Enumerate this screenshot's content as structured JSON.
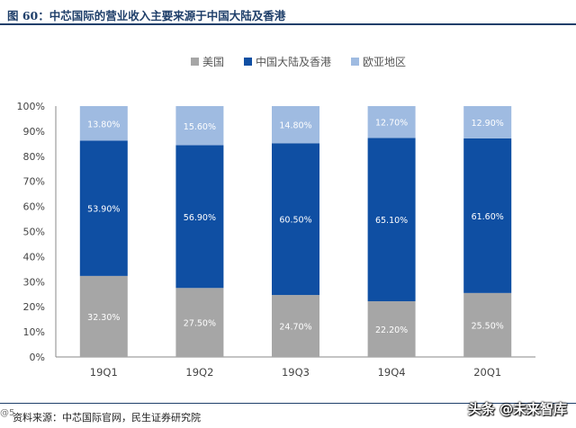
{
  "title": "图 60：中芯国际的营业收入主要来源于中国大陆及香港",
  "source": "资料来源：中芯国际官网，民生证券研究院",
  "watermark": "头条 @未来智库",
  "corner_text": "@5.",
  "colors": {
    "us": "#a6a6a6",
    "china": "#0f4fa3",
    "eu": "#9fbbe1",
    "title": "#1f3f6a"
  },
  "chart_data": {
    "type": "bar",
    "stacked": true,
    "title": "",
    "xlabel": "",
    "ylabel": "",
    "categories": [
      "19Q1",
      "19Q2",
      "19Q3",
      "19Q4",
      "20Q1"
    ],
    "series": [
      {
        "name": "美国",
        "values": [
          32.3,
          27.5,
          24.7,
          22.2,
          25.5
        ],
        "labels": [
          "32.30%",
          "27.50%",
          "24.70%",
          "22.20%",
          "25.50%"
        ]
      },
      {
        "name": "中国大陆及香港",
        "values": [
          53.9,
          56.9,
          60.5,
          65.1,
          61.6
        ],
        "labels": [
          "53.90%",
          "56.90%",
          "60.50%",
          "65.10%",
          "61.60%"
        ]
      },
      {
        "name": "欧亚地区",
        "values": [
          13.8,
          15.6,
          14.8,
          12.7,
          12.9
        ],
        "labels": [
          "13.80%",
          "15.60%",
          "14.80%",
          "12.70%",
          "12.90%"
        ]
      }
    ],
    "ylim": [
      0,
      100
    ],
    "yticks": [
      "0%",
      "10%",
      "20%",
      "30%",
      "40%",
      "50%",
      "60%",
      "70%",
      "80%",
      "90%",
      "100%"
    ],
    "legend_position": "top-center",
    "grid": false
  }
}
